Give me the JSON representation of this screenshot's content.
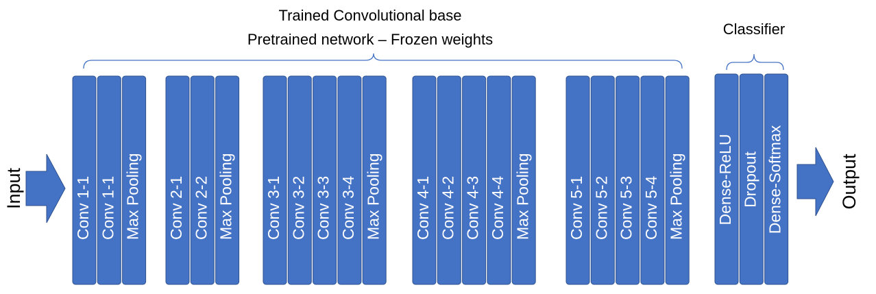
{
  "title": {
    "line1": "Trained Convolutional base",
    "line2": "Pretrained network – Frozen weights"
  },
  "classifier_label": "Classifier",
  "input_label": "Input",
  "output_label": "Output",
  "groups": [
    {
      "layers": [
        "Conv 1-1",
        "Conv 1-1",
        "Max Pooling"
      ]
    },
    {
      "layers": [
        "Conv 2-1",
        "Conv 2-2",
        "Max Pooling"
      ]
    },
    {
      "layers": [
        "Conv 3-1",
        "Conv 3-2",
        "Conv 3-3",
        "Conv 3-4",
        "Max Pooling"
      ]
    },
    {
      "layers": [
        "Conv 4-1",
        "Conv 4-2",
        "Conv 4-3",
        "Conv 4-4",
        "Max Pooling"
      ]
    },
    {
      "layers": [
        "Conv 5-1",
        "Conv 5-2",
        "Conv 5-3",
        "Conv 5-4",
        "Max Pooling"
      ]
    }
  ],
  "classifier": {
    "layers": [
      "Dense-ReLU",
      "Dropout",
      "Dense-Softmax"
    ]
  }
}
